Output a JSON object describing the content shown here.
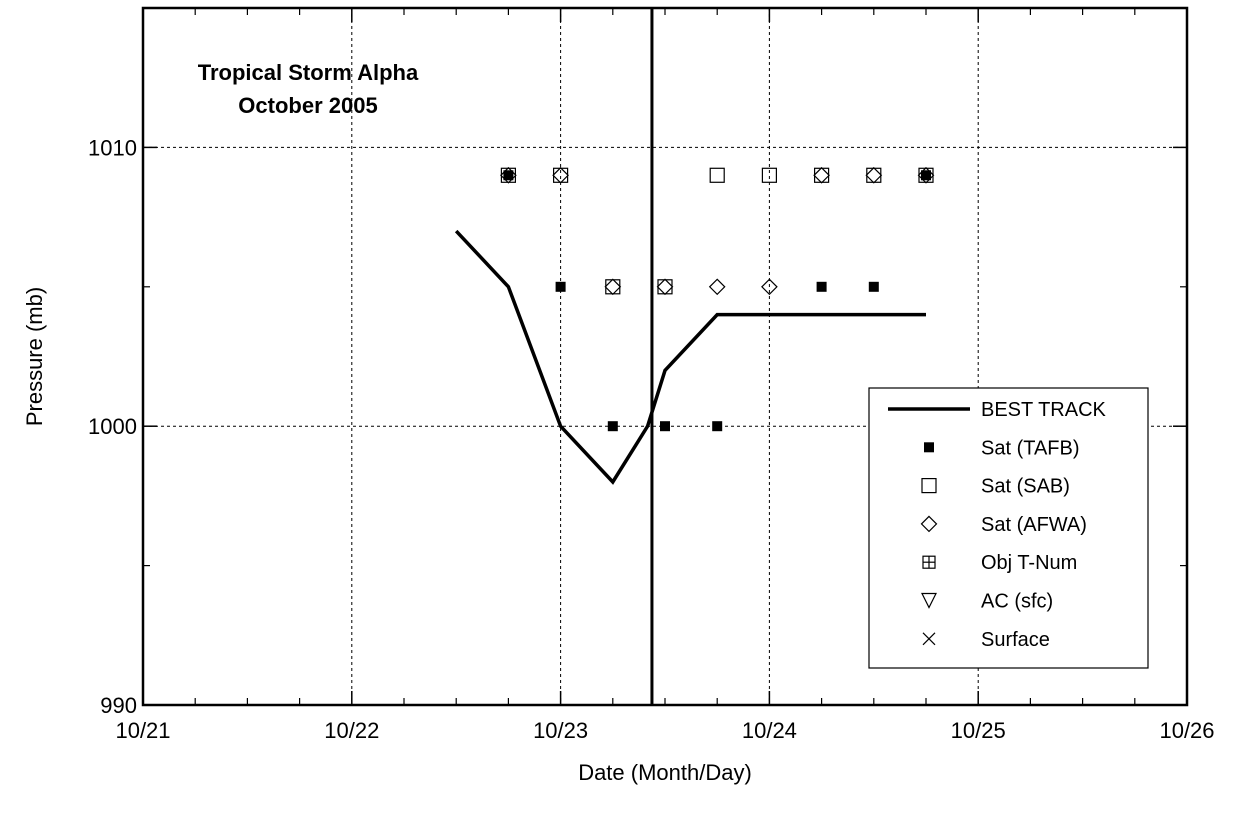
{
  "chart_data": {
    "type": "scatter",
    "title_lines": [
      "Tropical Storm Alpha",
      "October 2005"
    ],
    "xlabel": "Date (Month/Day)",
    "ylabel": "Pressure (mb)",
    "xlim": [
      "10/21",
      "10/26"
    ],
    "ylim": [
      990,
      1015
    ],
    "x_ticks": [
      "10/21",
      "10/22",
      "10/23",
      "10/24",
      "10/25",
      "10/26"
    ],
    "y_ticks": [
      990,
      1000,
      1010
    ],
    "grid": true,
    "legend_position": "bottom-right",
    "vertical_line_x": "10/23 10:30",
    "series": [
      {
        "name": "BEST TRACK",
        "marker": "line",
        "points": [
          [
            "10/22 12:00",
            1007
          ],
          [
            "10/22 18:00",
            1005
          ],
          [
            "10/23 00:00",
            1000
          ],
          [
            "10/23 06:00",
            998
          ],
          [
            "10/23 10:00",
            1000
          ],
          [
            "10/23 12:00",
            1002
          ],
          [
            "10/23 18:00",
            1004
          ],
          [
            "10/24 00:00",
            1004
          ],
          [
            "10/24 06:00",
            1004
          ],
          [
            "10/24 12:00",
            1004
          ],
          [
            "10/24 18:00",
            1004
          ]
        ]
      },
      {
        "name": "Sat (TAFB)",
        "marker": "filled-square",
        "points": [
          [
            "10/22 18:00",
            1009
          ],
          [
            "10/23 00:00",
            1005
          ],
          [
            "10/23 06:00",
            1000
          ],
          [
            "10/23 12:00",
            1000
          ],
          [
            "10/23 18:00",
            1000
          ],
          [
            "10/24 06:00",
            1005
          ],
          [
            "10/24 12:00",
            1005
          ],
          [
            "10/24 18:00",
            1009
          ]
        ]
      },
      {
        "name": "Sat (SAB)",
        "marker": "open-square",
        "points": [
          [
            "10/22 18:00",
            1009
          ],
          [
            "10/23 00:00",
            1009
          ],
          [
            "10/23 06:00",
            1005
          ],
          [
            "10/23 12:00",
            1005
          ],
          [
            "10/23 18:00",
            1009
          ],
          [
            "10/24 00:00",
            1009
          ],
          [
            "10/24 06:00",
            1009
          ],
          [
            "10/24 12:00",
            1009
          ],
          [
            "10/24 18:00",
            1009
          ]
        ]
      },
      {
        "name": "Sat (AFWA)",
        "marker": "diamond",
        "points": [
          [
            "10/22 18:00",
            1009
          ],
          [
            "10/23 00:00",
            1009
          ],
          [
            "10/23 06:00",
            1005
          ],
          [
            "10/23 12:00",
            1005
          ],
          [
            "10/23 18:00",
            1005
          ],
          [
            "10/24 00:00",
            1005
          ],
          [
            "10/24 06:00",
            1009
          ],
          [
            "10/24 12:00",
            1009
          ],
          [
            "10/24 18:00",
            1009
          ]
        ]
      },
      {
        "name": "Obj T-Num",
        "marker": "crossed-square",
        "points": []
      },
      {
        "name": "AC (sfc)",
        "marker": "down-triangle",
        "points": []
      },
      {
        "name": "Surface",
        "marker": "x",
        "points": []
      }
    ]
  }
}
